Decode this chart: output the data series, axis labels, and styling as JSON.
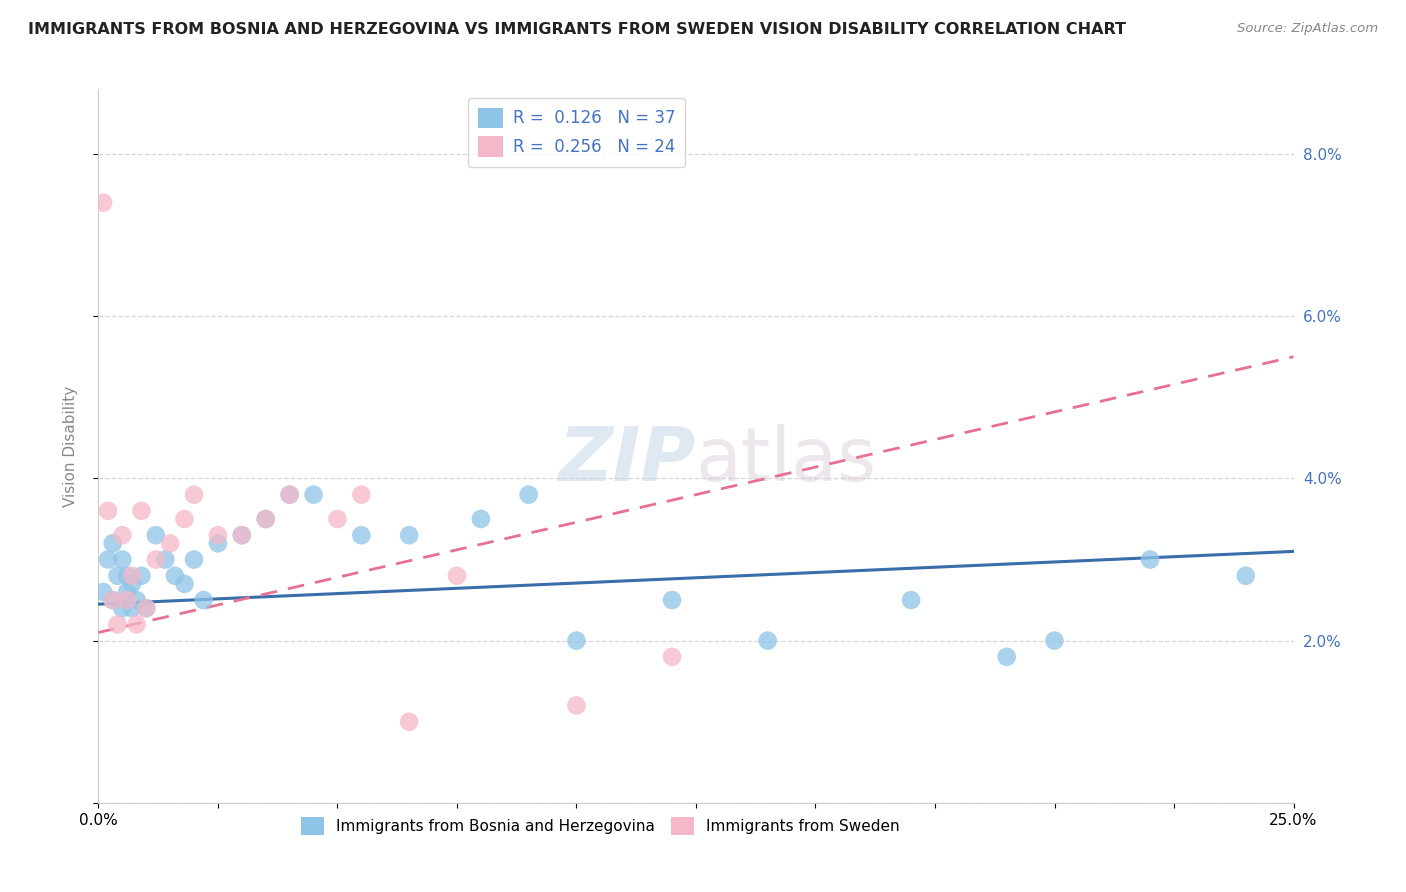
{
  "title": "IMMIGRANTS FROM BOSNIA AND HERZEGOVINA VS IMMIGRANTS FROM SWEDEN VISION DISABILITY CORRELATION CHART",
  "source": "Source: ZipAtlas.com",
  "ylabel": "Vision Disability",
  "xlim": [
    0.0,
    0.25
  ],
  "ylim": [
    0.0,
    0.088
  ],
  "series1_label": "Immigrants from Bosnia and Herzegovina",
  "series2_label": "Immigrants from Sweden",
  "blue_color": "#8ec4e8",
  "pink_color": "#f4b8c8",
  "blue_line_color": "#3a6eaa",
  "pink_line_color": "#e87090",
  "R1": 0.126,
  "N1": 37,
  "R2": 0.256,
  "N2": 24,
  "legend_r_color": "#4472c4",
  "legend_n_color": "#e05050",
  "right_axis_color": "#4472c4",
  "background_color": "#ffffff",
  "title_fontsize": 11.5,
  "axis_label_fontsize": 11,
  "tick_fontsize": 11,
  "legend_fontsize": 12,
  "bosnia_x": [
    0.001,
    0.002,
    0.003,
    0.003,
    0.004,
    0.005,
    0.005,
    0.006,
    0.006,
    0.007,
    0.007,
    0.008,
    0.009,
    0.01,
    0.012,
    0.014,
    0.016,
    0.018,
    0.02,
    0.022,
    0.025,
    0.03,
    0.035,
    0.04,
    0.045,
    0.055,
    0.065,
    0.08,
    0.09,
    0.1,
    0.12,
    0.14,
    0.17,
    0.19,
    0.2,
    0.22,
    0.24
  ],
  "bosnia_y": [
    0.026,
    0.03,
    0.025,
    0.032,
    0.028,
    0.024,
    0.03,
    0.026,
    0.028,
    0.024,
    0.027,
    0.025,
    0.028,
    0.024,
    0.033,
    0.03,
    0.028,
    0.027,
    0.03,
    0.025,
    0.032,
    0.033,
    0.035,
    0.038,
    0.038,
    0.033,
    0.033,
    0.035,
    0.038,
    0.02,
    0.025,
    0.02,
    0.025,
    0.018,
    0.02,
    0.03,
    0.028
  ],
  "sweden_x": [
    0.001,
    0.002,
    0.003,
    0.004,
    0.005,
    0.006,
    0.007,
    0.008,
    0.009,
    0.01,
    0.012,
    0.015,
    0.018,
    0.02,
    0.025,
    0.03,
    0.035,
    0.04,
    0.05,
    0.055,
    0.065,
    0.075,
    0.1,
    0.12
  ],
  "sweden_y": [
    0.074,
    0.036,
    0.025,
    0.022,
    0.033,
    0.025,
    0.028,
    0.022,
    0.036,
    0.024,
    0.03,
    0.032,
    0.035,
    0.038,
    0.033,
    0.033,
    0.035,
    0.038,
    0.035,
    0.038,
    0.01,
    0.028,
    0.012,
    0.018
  ],
  "blue_trendline_start_y": 0.0245,
  "blue_trendline_end_y": 0.031,
  "pink_trendline_start_y": 0.021,
  "pink_trendline_end_y": 0.055
}
